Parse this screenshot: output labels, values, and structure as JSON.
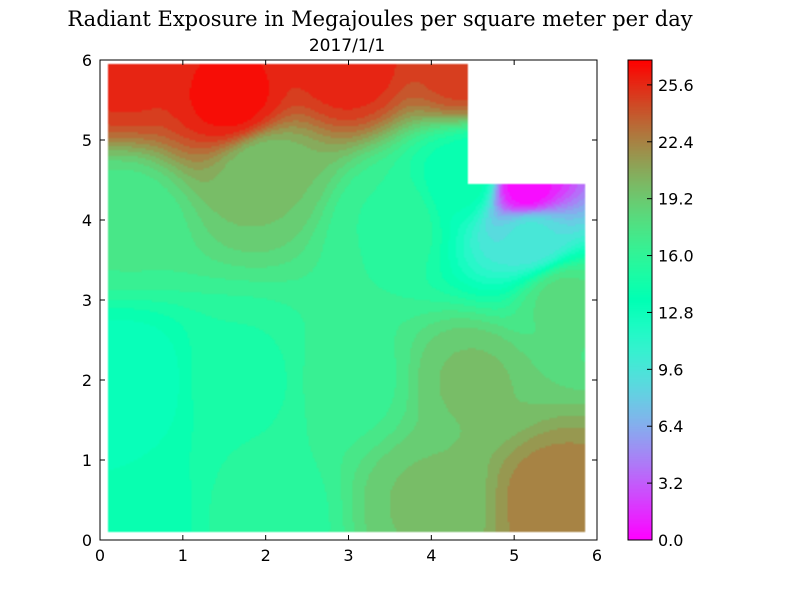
{
  "chart_data": {
    "type": "heatmap",
    "title": "Radiant Exposure in Megajoules per square meter per day",
    "subtitle": "2017/1/1",
    "xlabel": "",
    "ylabel": "",
    "xlim": [
      0,
      6
    ],
    "ylim": [
      0,
      6
    ],
    "x_ticks": [
      "0",
      "1",
      "2",
      "3",
      "4",
      "5",
      "6"
    ],
    "y_ticks": [
      "0",
      "1",
      "2",
      "3",
      "4",
      "5",
      "6"
    ],
    "domain": {
      "x": [
        0.1,
        5.85
      ],
      "y": [
        0.1,
        5.95
      ]
    },
    "masked_region": {
      "x": [
        4.45,
        6.0
      ],
      "y": [
        4.45,
        6.0
      ]
    },
    "colorbar": {
      "range": [
        0.0,
        27.0
      ],
      "ticks": [
        "0.0",
        "3.2",
        "6.4",
        "9.6",
        "12.8",
        "16.0",
        "19.2",
        "22.4",
        "25.6"
      ],
      "colormap": "rainbow"
    },
    "grid": false,
    "approximate_field_samples": [
      {
        "x": 0.3,
        "y": 5.9,
        "value": 25.6
      },
      {
        "x": 1.6,
        "y": 5.5,
        "value": 26.5
      },
      {
        "x": 3.0,
        "y": 5.9,
        "value": 25.8
      },
      {
        "x": 4.4,
        "y": 5.9,
        "value": 25.0
      },
      {
        "x": 2.0,
        "y": 4.6,
        "value": 19.5
      },
      {
        "x": 0.3,
        "y": 4.0,
        "value": 17.0
      },
      {
        "x": 3.5,
        "y": 4.0,
        "value": 16.0
      },
      {
        "x": 4.4,
        "y": 4.5,
        "value": 14.0
      },
      {
        "x": 5.15,
        "y": 4.4,
        "value": 0.3
      },
      {
        "x": 5.2,
        "y": 3.8,
        "value": 9.5
      },
      {
        "x": 5.6,
        "y": 3.0,
        "value": 18.0
      },
      {
        "x": 0.3,
        "y": 2.0,
        "value": 12.8
      },
      {
        "x": 1.8,
        "y": 2.0,
        "value": 15.0
      },
      {
        "x": 3.0,
        "y": 2.0,
        "value": 16.5
      },
      {
        "x": 4.5,
        "y": 2.0,
        "value": 19.5
      },
      {
        "x": 0.3,
        "y": 0.3,
        "value": 13.5
      },
      {
        "x": 2.0,
        "y": 0.3,
        "value": 15.5
      },
      {
        "x": 4.0,
        "y": 0.5,
        "value": 19.5
      },
      {
        "x": 5.5,
        "y": 0.5,
        "value": 22.5
      }
    ]
  }
}
